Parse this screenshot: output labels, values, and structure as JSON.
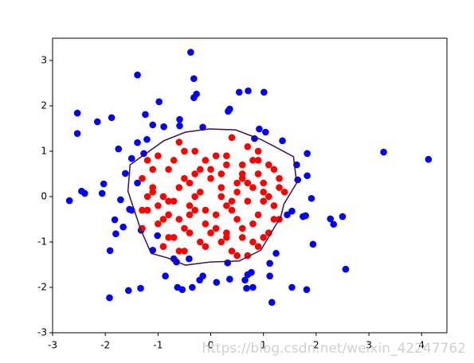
{
  "chart_data": {
    "type": "scatter",
    "xlim": [
      -3.0,
      4.48
    ],
    "ylim": [
      -3.0,
      3.49
    ],
    "xticks": [
      -3,
      -2,
      -1,
      0,
      1,
      2,
      3,
      4
    ],
    "yticks": [
      -3,
      -2,
      -1,
      0,
      1,
      2,
      3
    ],
    "series": [
      {
        "color": "#0000ff",
        "x": [
          -0.38,
          -1.39,
          -0.32,
          -0.32,
          -0.27,
          0.71,
          1.01,
          0.54,
          -2.53,
          -2.53,
          -2.15,
          -1.88,
          -1.24,
          -0.98,
          -0.59,
          -0.59,
          -1.1,
          -0.89,
          -0.15,
          0.33,
          0.36,
          0.92,
          1.04,
          1.36,
          -1.21,
          -1.39,
          -1.75,
          -1.27,
          -1.5,
          -1.62,
          -2.03,
          -1.39,
          -2.45,
          -2.39,
          -2.06,
          -1.71,
          -2.68,
          -1.54,
          -1.5,
          -1.82,
          -1.66,
          -1.8,
          -1.32,
          -1.01,
          -1.1,
          -1.91,
          -0.7,
          -0.65,
          -0.41,
          -0.86,
          -0.15,
          -0.21,
          0.11,
          0.36,
          0.32,
          0.7,
          0.77,
          0.65,
          0.8,
          0.68,
          1.16,
          1.12,
          1.12,
          1.24,
          1.54,
          1.82,
          1.54,
          1.45,
          1.75,
          1.8,
          1.91,
          1.94,
          2.56,
          2.33,
          2.27,
          2.5,
          1.83,
          1.83,
          1.63,
          1.65,
          3.28,
          4.13,
          -0.63,
          -0.54,
          -1.33,
          -1.56,
          -1.92,
          -0.35,
          0.83
        ],
        "y": [
          3.18,
          2.68,
          2.6,
          2.18,
          2.26,
          2.33,
          2.3,
          2.3,
          1.84,
          1.39,
          1.65,
          1.74,
          1.81,
          2.09,
          1.7,
          1.56,
          1.58,
          1.54,
          1.53,
          1.88,
          1.93,
          1.49,
          1.42,
          1.23,
          1.26,
          1.19,
          1.05,
          0.95,
          0.84,
          0.51,
          0.28,
          0.3,
          0.12,
          0.07,
          0.07,
          -0.07,
          -0.09,
          -0.28,
          -0.3,
          -0.51,
          -0.67,
          -0.82,
          -0.74,
          -0.86,
          -1.18,
          -1.19,
          -1.37,
          -1.44,
          -1.37,
          -1.75,
          -1.75,
          -1.84,
          -1.89,
          -1.82,
          -1.46,
          -1.72,
          -1.67,
          -1.84,
          -2.0,
          -2.02,
          -2.33,
          -1.75,
          -1.47,
          -1.25,
          -2.0,
          -2.05,
          -0.32,
          -0.4,
          -0.44,
          -0.42,
          -0.04,
          -1.05,
          -1.6,
          -0.61,
          -0.49,
          -0.44,
          0.95,
          0.46,
          0.7,
          0.37,
          0.98,
          0.82,
          -2.0,
          -2.05,
          -2.02,
          -2.07,
          -2.23,
          -2.0,
          1.28
        ]
      },
      {
        "color": "#ff0000",
        "x": [
          0.4,
          0.7,
          -0.6,
          -0.3,
          0.1,
          0.9,
          -1.0,
          1.2,
          -1.3,
          0.3,
          -0.8,
          0.6,
          -0.1,
          1.0,
          -0.5,
          0.2,
          -1.1,
          0.8,
          -0.4,
          0.5,
          1.3,
          -0.9,
          0.0,
          -0.2,
          0.7,
          -0.7,
          1.1,
          -1.2,
          0.3,
          -0.3,
          0.9,
          -0.6,
          0.5,
          -1.0,
          0.1,
          1.2,
          -0.4,
          0.6,
          -0.8,
          0.2,
          -1.3,
          1.0,
          -0.1,
          0.4,
          -0.5,
          0.8,
          -0.9,
          1.4,
          -0.2,
          0.3,
          0.6,
          -0.7,
          1.1,
          -1.1,
          0.0,
          0.9,
          -0.3,
          0.5,
          -0.6,
          1.3,
          -1.2,
          0.2,
          0.7,
          -0.4,
          1.0,
          -0.8,
          0.4,
          -0.1,
          0.8,
          -1.0,
          0.1,
          1.2,
          -0.5,
          0.6,
          -0.9,
          0.3,
          -0.2,
          1.1,
          -0.7,
          0.5,
          -1.3,
          0.9,
          0.0,
          -0.6,
          0.7,
          -0.3,
          1.0,
          -1.1,
          0.2,
          0.4,
          -0.8,
          1.3,
          -0.4,
          0.6,
          -0.1,
          0.8,
          -1.2,
          0.3,
          -0.5,
          0.9
        ],
        "y": [
          1.3,
          1.1,
          1.2,
          1.0,
          0.9,
          0.8,
          0.9,
          0.6,
          0.4,
          0.7,
          0.6,
          0.5,
          0.8,
          0.3,
          0.4,
          0.5,
          0.2,
          0.2,
          0.3,
          0.1,
          0.2,
          0.0,
          0.4,
          0.1,
          -0.1,
          -0.1,
          0.0,
          -0.3,
          -0.2,
          -0.3,
          -0.4,
          -0.5,
          -0.5,
          -0.6,
          -0.7,
          -0.5,
          -0.8,
          -0.9,
          -0.9,
          -1.0,
          -0.7,
          -0.9,
          -1.1,
          -1.2,
          -1.2,
          -1.0,
          -1.1,
          0.1,
          0.6,
          0.9,
          0.7,
          0.8,
          0.7,
          0.6,
          0.6,
          0.5,
          0.5,
          0.3,
          0.2,
          0.4,
          0.0,
          0.2,
          0.3,
          -0.2,
          -0.1,
          -0.4,
          -0.3,
          -0.6,
          -0.6,
          -0.2,
          -0.4,
          -0.2,
          -0.7,
          -0.7,
          -0.5,
          -0.8,
          -1.0,
          -0.8,
          -0.9,
          -1.3,
          -0.3,
          -1.1,
          -0.8,
          -1.2,
          -1.3,
          0.0,
          0.1,
          0.1,
          0.0,
          -0.1,
          -0.1,
          -0.5,
          -0.4,
          0.4,
          -0.3,
          0.8,
          0.8,
          -0.9,
          1.0,
          1.0
        ]
      }
    ],
    "contour": {
      "color": "#3b0f50",
      "x": [
        -0.03,
        0.47,
        0.95,
        1.15,
        1.57,
        1.63,
        1.39,
        1.33,
        0.95,
        0.54,
        0.0,
        -0.48,
        -0.82,
        -1.13,
        -1.33,
        -1.57,
        -1.53,
        -0.89,
        -0.48,
        -0.03
      ],
      "y": [
        1.49,
        1.47,
        1.26,
        1.14,
        0.88,
        0.3,
        -0.16,
        -0.44,
        -1.18,
        -1.42,
        -1.44,
        -1.51,
        -1.35,
        -1.25,
        -0.72,
        0.12,
        0.7,
        1.23,
        1.42,
        1.49
      ]
    },
    "watermark": "https://blog.csdn.net/weixin_42247762"
  }
}
